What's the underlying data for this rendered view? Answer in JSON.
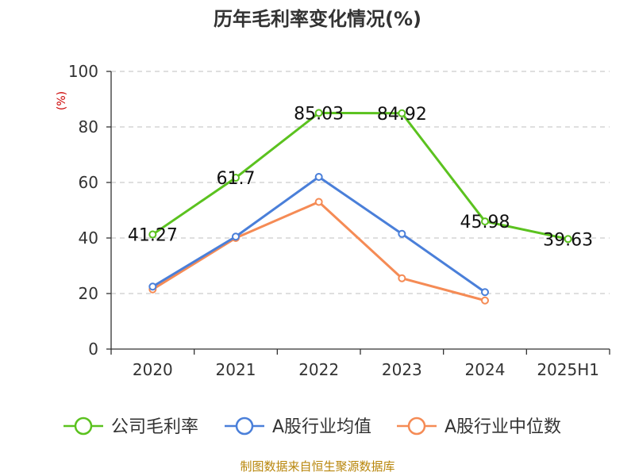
{
  "chart_data": {
    "type": "line",
    "title": "历年毛利率变化情况(%)",
    "ylabel": "(%)",
    "categories": [
      "2020",
      "2021",
      "2022",
      "2023",
      "2024",
      "2025H1"
    ],
    "ylim": [
      0,
      100
    ],
    "yticks": [
      "0",
      "20",
      "40",
      "60",
      "80",
      "100"
    ],
    "grid": true,
    "legend_position": "bottom",
    "series": [
      {
        "name": "公司毛利率",
        "color": "#5bc21f",
        "values": [
          41.27,
          61.7,
          85.03,
          84.92,
          45.98,
          39.63
        ],
        "labels": [
          "41.27",
          "61.7",
          "85.03",
          "84.92",
          "45.98",
          "39.63"
        ]
      },
      {
        "name": "A股行业均值",
        "color": "#4a7fd9",
        "values": [
          22.5,
          40.5,
          62.0,
          41.5,
          20.5,
          null
        ]
      },
      {
        "name": "A股行业中位数",
        "color": "#f58b55",
        "values": [
          21.5,
          40.0,
          53.0,
          25.5,
          17.5,
          null
        ]
      }
    ]
  },
  "source": "制图数据来自恒生聚源数据库"
}
